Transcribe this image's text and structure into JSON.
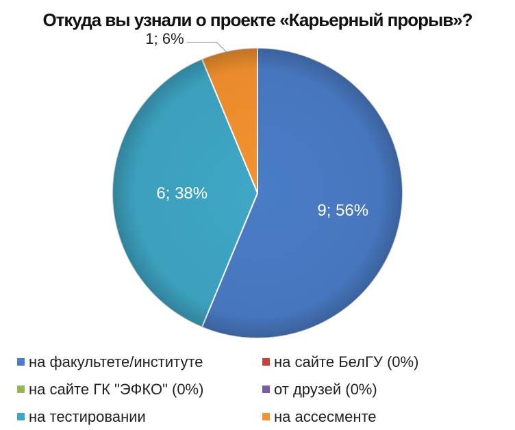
{
  "chart_data": {
    "type": "pie",
    "title": "Откуда вы узнали о проекте «Карьерный прорыв»?",
    "categories": [
      "на факультете/институте",
      "на сайте БелГУ (0%)",
      "на сайте ГК \"ЭФКО\" (0%)",
      "от друзей (0%)",
      "на тестировании",
      "на ассесменте"
    ],
    "values": [
      9,
      0,
      0,
      0,
      6,
      1
    ],
    "data_labels": [
      "9; 56%",
      "",
      "",
      "",
      "6; 38%",
      "1; 6%"
    ],
    "colors": [
      "#4a7cc7",
      "#c8413d",
      "#97b954",
      "#7d5aa8",
      "#3fa7c6",
      "#f5922f"
    ],
    "legend_position": "bottom"
  }
}
